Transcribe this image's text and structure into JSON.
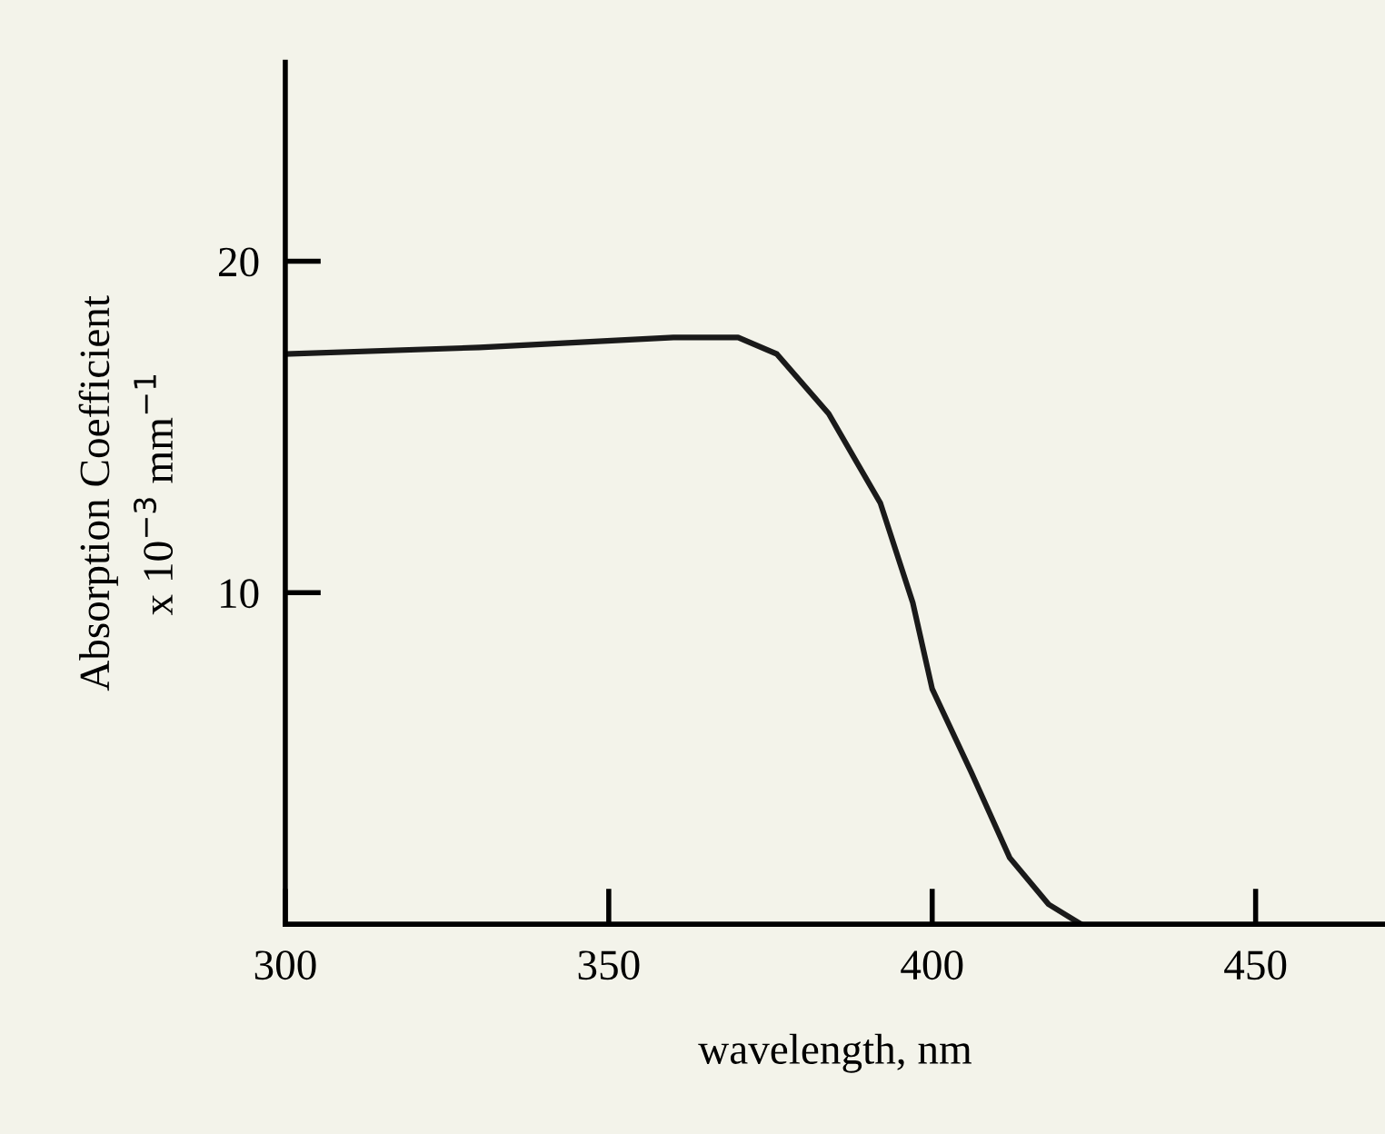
{
  "chart_data": {
    "type": "line",
    "xlabel": "wavelength, nm",
    "ylabel": "Absorption Coefficient\nx 10$^{−3}$ mm$^{−1}$",
    "x": [
      300,
      330,
      360,
      370,
      376,
      384,
      392,
      397,
      400,
      406,
      412,
      418,
      423
    ],
    "series": [
      {
        "color": "#1a1a1a",
        "values": [
          17.2,
          17.4,
          17.7,
          17.7,
          17.2,
          15.4,
          12.7,
          9.7,
          7.1,
          4.6,
          2.0,
          0.6,
          0
        ]
      }
    ],
    "xlim": [
      300,
      470
    ],
    "ylim": [
      0,
      26
    ],
    "xticks": [
      300,
      350,
      400,
      450
    ],
    "yticks": [
      10,
      20
    ],
    "grid": false,
    "legend": false,
    "marker": "none",
    "line_style": "solid"
  }
}
